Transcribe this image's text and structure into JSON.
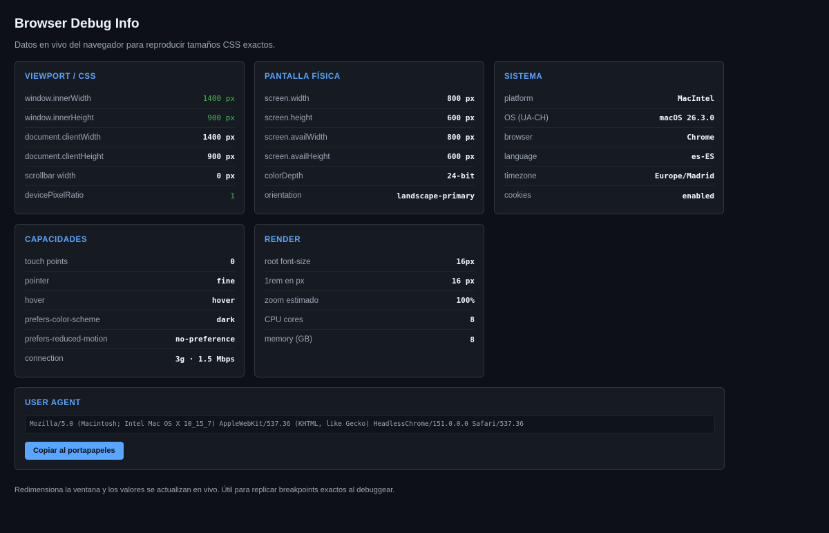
{
  "page": {
    "title": "Browser Debug Info",
    "subtitle": "Datos en vivo del navegador para reproducir tamaños CSS exactos.",
    "footer": "Redimensiona la ventana y los valores se actualizan en vivo. Útil para replicar breakpoints exactos al debuggear."
  },
  "colors": {
    "background": "#0d1117",
    "card": "#161b22",
    "accent_blue": "#58a6ff",
    "accent_green": "#3fb950"
  },
  "cards": {
    "viewport": {
      "title": "VIEWPORT / CSS",
      "rows": [
        {
          "label": "window.innerWidth",
          "value": "1400 px",
          "highlight": true
        },
        {
          "label": "window.innerHeight",
          "value": "900 px",
          "highlight": true
        },
        {
          "label": "document.clientWidth",
          "value": "1400 px",
          "highlight": false
        },
        {
          "label": "document.clientHeight",
          "value": "900 px",
          "highlight": false
        },
        {
          "label": "scrollbar width",
          "value": "0 px",
          "highlight": false
        },
        {
          "label": "devicePixelRatio",
          "value": "1",
          "highlight": true
        }
      ]
    },
    "screen": {
      "title": "PANTALLA FÍSICA",
      "rows": [
        {
          "label": "screen.width",
          "value": "800 px"
        },
        {
          "label": "screen.height",
          "value": "600 px"
        },
        {
          "label": "screen.availWidth",
          "value": "800 px"
        },
        {
          "label": "screen.availHeight",
          "value": "600 px"
        },
        {
          "label": "colorDepth",
          "value": "24-bit"
        },
        {
          "label": "orientation",
          "value": "landscape-primary"
        }
      ]
    },
    "system": {
      "title": "SISTEMA",
      "rows": [
        {
          "label": "platform",
          "value": "MacIntel"
        },
        {
          "label": "OS (UA-CH)",
          "value": "macOS 26.3.0"
        },
        {
          "label": "browser",
          "value": "Chrome"
        },
        {
          "label": "language",
          "value": "es-ES"
        },
        {
          "label": "timezone",
          "value": "Europe/Madrid"
        },
        {
          "label": "cookies",
          "value": "enabled"
        }
      ]
    },
    "capabilities": {
      "title": "CAPACIDADES",
      "rows": [
        {
          "label": "touch points",
          "value": "0"
        },
        {
          "label": "pointer",
          "value": "fine"
        },
        {
          "label": "hover",
          "value": "hover"
        },
        {
          "label": "prefers-color-scheme",
          "value": "dark"
        },
        {
          "label": "prefers-reduced-motion",
          "value": "no-preference"
        },
        {
          "label": "connection",
          "value": "3g · 1.5 Mbps"
        }
      ]
    },
    "render": {
      "title": "RENDER",
      "rows": [
        {
          "label": "root font-size",
          "value": "16px"
        },
        {
          "label": "1rem en px",
          "value": "16 px"
        },
        {
          "label": "zoom estimado",
          "value": "100%"
        },
        {
          "label": "CPU cores",
          "value": "8"
        },
        {
          "label": "memory (GB)",
          "value": "8"
        }
      ]
    },
    "user_agent": {
      "title": "USER AGENT",
      "value": "Mozilla/5.0 (Macintosh; Intel Mac OS X 10_15_7) AppleWebKit/537.36 (KHTML, like Gecko) HeadlessChrome/151.0.0.0 Safari/537.36",
      "copy_label": "Copiar al portapapeles"
    }
  }
}
